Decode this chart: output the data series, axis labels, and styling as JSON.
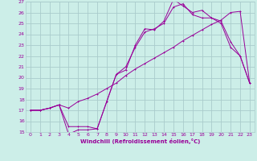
{
  "xlabel": "Windchill (Refroidissement éolien,°C)",
  "bg_color": "#cceee8",
  "line_color": "#990099",
  "grid_color": "#aacccc",
  "xlim": [
    -0.5,
    23.5
  ],
  "ylim": [
    15,
    27
  ],
  "xticks": [
    0,
    1,
    2,
    3,
    4,
    5,
    6,
    7,
    8,
    9,
    10,
    11,
    12,
    13,
    14,
    15,
    16,
    17,
    18,
    19,
    20,
    21,
    22,
    23
  ],
  "yticks": [
    15,
    16,
    17,
    18,
    19,
    20,
    21,
    22,
    23,
    24,
    25,
    26,
    27
  ],
  "line1_x": [
    0,
    1,
    2,
    3,
    4,
    5,
    6,
    7,
    8,
    9,
    10,
    11,
    12,
    13,
    14,
    15,
    16,
    17,
    18,
    19,
    20,
    21,
    22,
    23
  ],
  "line1_y": [
    17.0,
    17.0,
    17.2,
    17.5,
    17.2,
    17.8,
    18.1,
    18.5,
    19.0,
    19.5,
    20.2,
    20.8,
    21.3,
    21.8,
    22.3,
    22.8,
    23.4,
    23.9,
    24.4,
    24.9,
    25.3,
    26.0,
    26.1,
    19.5
  ],
  "line2_x": [
    0,
    1,
    2,
    3,
    4,
    5,
    6,
    7,
    8,
    9,
    10,
    11,
    12,
    13,
    14,
    15,
    16,
    17,
    18,
    19,
    20,
    21,
    22,
    23
  ],
  "line2_y": [
    17.0,
    17.0,
    17.2,
    17.5,
    14.8,
    15.2,
    15.2,
    15.3,
    17.8,
    20.3,
    20.7,
    23.0,
    24.5,
    24.4,
    25.2,
    27.2,
    26.6,
    26.0,
    26.2,
    25.5,
    25.0,
    22.8,
    22.0,
    19.5
  ],
  "line3_x": [
    0,
    1,
    2,
    3,
    4,
    5,
    6,
    7,
    8,
    9,
    10,
    11,
    12,
    13,
    14,
    15,
    16,
    17,
    18,
    19,
    20,
    21,
    22,
    23
  ],
  "line3_y": [
    17.0,
    17.0,
    17.2,
    17.5,
    15.5,
    15.5,
    15.5,
    15.3,
    17.8,
    20.3,
    21.0,
    22.8,
    24.2,
    24.5,
    25.0,
    26.5,
    26.8,
    25.8,
    25.5,
    25.5,
    25.2,
    23.3,
    22.0,
    19.5
  ]
}
